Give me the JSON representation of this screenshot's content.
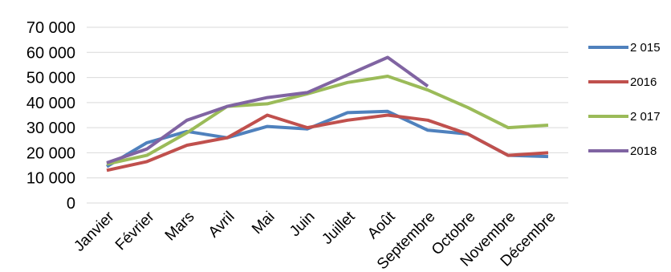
{
  "chart_data": {
    "type": "line",
    "title": "",
    "xlabel": "",
    "ylabel": "",
    "categories": [
      "Janvier",
      "Février",
      "Mars",
      "Avril",
      "Mai",
      "Juin",
      "Juillet",
      "Août",
      "Septembre",
      "Octobre",
      "Novembre",
      "Décembre"
    ],
    "ylim": [
      0,
      70000
    ],
    "y_ticks": [
      0,
      10000,
      20000,
      30000,
      40000,
      50000,
      60000,
      70000
    ],
    "y_tick_labels": [
      "0",
      "10 000",
      "20 000",
      "30 000",
      "40 000",
      "50 000",
      "60 000",
      "70 000"
    ],
    "grid": "horizontal",
    "legend_position": "right",
    "series": [
      {
        "name": "2 015",
        "color": "#4f81bd",
        "values": [
          14500,
          24000,
          28500,
          26000,
          30500,
          29500,
          36000,
          36500,
          29000,
          27500,
          19000,
          18500
        ]
      },
      {
        "name": "2016",
        "color": "#c0504d",
        "values": [
          13000,
          16500,
          23000,
          26000,
          35000,
          30000,
          33000,
          35000,
          33000,
          27500,
          19000,
          20000
        ]
      },
      {
        "name": "2 017",
        "color": "#9bbb59",
        "values": [
          15500,
          19000,
          28000,
          38500,
          39500,
          43500,
          48000,
          50500,
          45000,
          38000,
          30000,
          31000
        ]
      },
      {
        "name": "2018",
        "color": "#8064a2",
        "values": [
          16000,
          21500,
          33000,
          38500,
          42000,
          44000,
          51000,
          58000,
          46500,
          null,
          null,
          null
        ]
      }
    ]
  }
}
